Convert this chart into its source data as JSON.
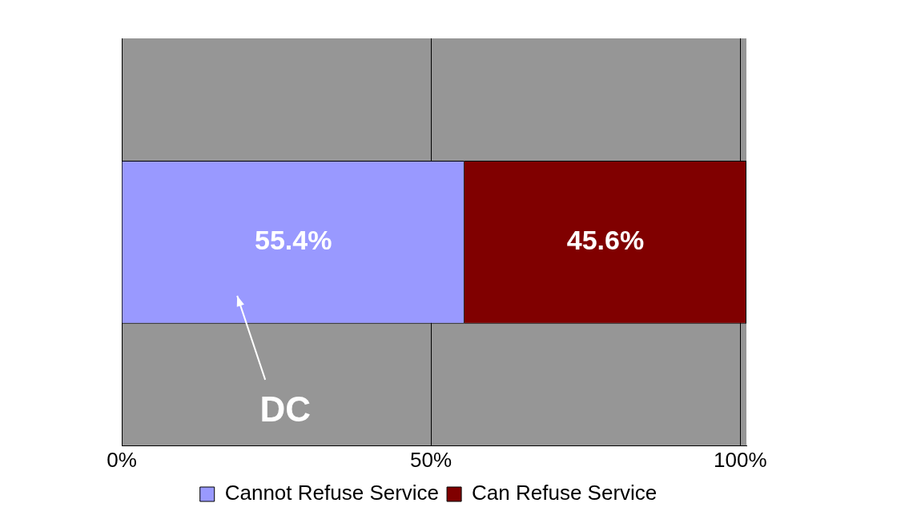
{
  "chart_data": {
    "type": "bar",
    "orientation": "horizontal",
    "stacked": true,
    "categories": [
      null
    ],
    "series": [
      {
        "name": "Cannot Refuse Service",
        "color": "#9999ff",
        "values": [
          55.4
        ],
        "value_labels": [
          "55.4%"
        ]
      },
      {
        "name": "Can Refuse Service",
        "color": "#800000",
        "values": [
          45.6
        ],
        "value_labels": [
          "45.6%"
        ]
      }
    ],
    "xlim": [
      0,
      101
    ],
    "xticks": [
      {
        "value": 0,
        "label": "0%"
      },
      {
        "value": 50,
        "label": "50%"
      },
      {
        "value": 100,
        "label": "100%"
      }
    ],
    "grid": "x",
    "legend": "bottom",
    "annotations": [
      "DC"
    ]
  }
}
